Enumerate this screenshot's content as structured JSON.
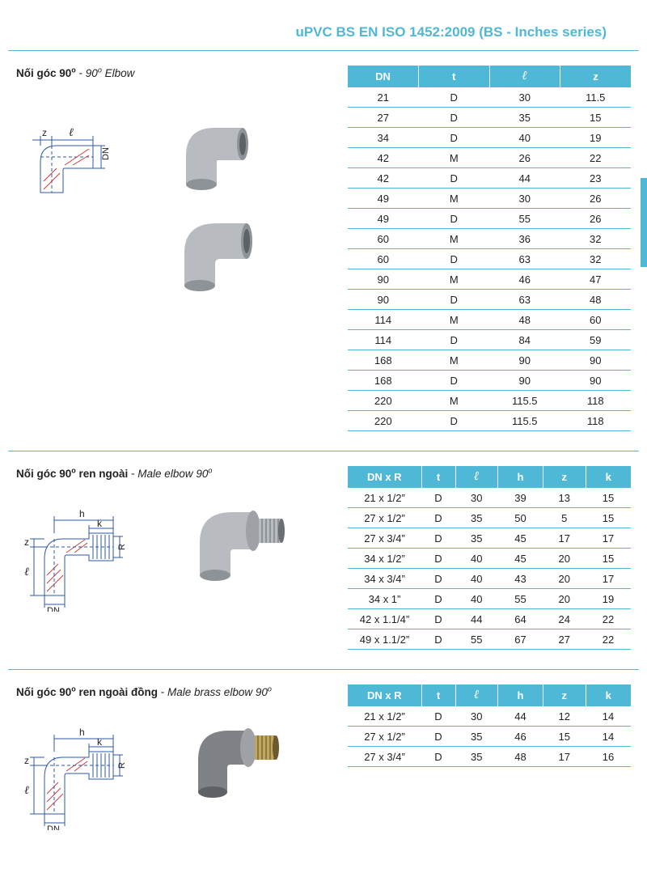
{
  "header": "uPVC BS EN ISO 1452:2009 (BS - Inches series)",
  "colors": {
    "accent": "#4fb8d6",
    "elbow_fill": "#b8bcc0",
    "elbow_shade": "#8e9398",
    "brass": "#bfa662",
    "dim_line": "#2d5aa6",
    "dim_hatch": "#c83c3c"
  },
  "section1": {
    "title_vn": "Nối góc 90",
    "title_en": "90",
    "title_en_suffix": " Elbow",
    "dim_labels": {
      "z": "z",
      "l": "ℓ",
      "dn": "DN"
    },
    "table": {
      "columns": [
        "DN",
        "t",
        "ℓ",
        "z"
      ],
      "col_ital": [
        false,
        false,
        true,
        false
      ],
      "col_widths": [
        "25%",
        "25%",
        "25%",
        "25%"
      ],
      "rows": [
        [
          "21",
          "D",
          "30",
          "11.5"
        ],
        [
          "27",
          "D",
          "35",
          "15"
        ],
        [
          "34",
          "D",
          "40",
          "19"
        ],
        [
          "42",
          "M",
          "26",
          "22"
        ],
        [
          "42",
          "D",
          "44",
          "23"
        ],
        [
          "49",
          "M",
          "30",
          "26"
        ],
        [
          "49",
          "D",
          "55",
          "26"
        ],
        [
          "60",
          "M",
          "36",
          "32"
        ],
        [
          "60",
          "D",
          "63",
          "32"
        ],
        [
          "90",
          "M",
          "46",
          "47"
        ],
        [
          "90",
          "D",
          "63",
          "48"
        ],
        [
          "114",
          "M",
          "48",
          "60"
        ],
        [
          "114",
          "D",
          "84",
          "59"
        ],
        [
          "168",
          "M",
          "90",
          "90"
        ],
        [
          "168",
          "D",
          "90",
          "90"
        ],
        [
          "220",
          "M",
          "115.5",
          "118"
        ],
        [
          "220",
          "D",
          "115.5",
          "118"
        ]
      ]
    }
  },
  "section2": {
    "title_vn": "Nối góc 90",
    "title_vn_suffix": " ren ngoài",
    "title_en": "Male elbow 90",
    "dim_labels": {
      "h": "h",
      "k": "k",
      "r": "R",
      "z": "z",
      "l": "ℓ",
      "dn": "DN"
    },
    "table": {
      "columns": [
        "DN x R",
        "t",
        "ℓ",
        "h",
        "z",
        "k"
      ],
      "col_ital": [
        false,
        false,
        true,
        false,
        false,
        false
      ],
      "col_widths": [
        "26%",
        "12%",
        "15%",
        "16%",
        "15%",
        "16%"
      ],
      "rows": [
        [
          "21 x 1/2”",
          "D",
          "30",
          "39",
          "13",
          "15"
        ],
        [
          "27 x 1/2”",
          "D",
          "35",
          "50",
          "5",
          "15"
        ],
        [
          "27 x 3/4”",
          "D",
          "35",
          "45",
          "17",
          "17"
        ],
        [
          "34 x 1/2”",
          "D",
          "40",
          "45",
          "20",
          "15"
        ],
        [
          "34 x 3/4”",
          "D",
          "40",
          "43",
          "20",
          "17"
        ],
        [
          "34 x 1”",
          "D",
          "40",
          "55",
          "20",
          "19"
        ],
        [
          "42 x 1.1/4”",
          "D",
          "44",
          "64",
          "24",
          "22"
        ],
        [
          "49 x 1.1/2”",
          "D",
          "55",
          "67",
          "27",
          "22"
        ]
      ]
    }
  },
  "section3": {
    "title_vn": "Nối góc 90",
    "title_vn_suffix": " ren ngoài đồng",
    "title_en": "Male brass elbow 90",
    "dim_labels": {
      "h": "h",
      "k": "k",
      "r": "R",
      "z": "z",
      "l": "ℓ",
      "dn": "DN"
    },
    "table": {
      "columns": [
        "DN x R",
        "t",
        "ℓ",
        "h",
        "z",
        "k"
      ],
      "col_ital": [
        false,
        false,
        true,
        false,
        false,
        false
      ],
      "col_widths": [
        "26%",
        "12%",
        "15%",
        "16%",
        "15%",
        "16%"
      ],
      "rows": [
        [
          "21 x 1/2”",
          "D",
          "30",
          "44",
          "12",
          "14"
        ],
        [
          "27 x 1/2”",
          "D",
          "35",
          "46",
          "15",
          "14"
        ],
        [
          "27 x 3/4”",
          "D",
          "35",
          "48",
          "17",
          "16"
        ]
      ]
    }
  }
}
